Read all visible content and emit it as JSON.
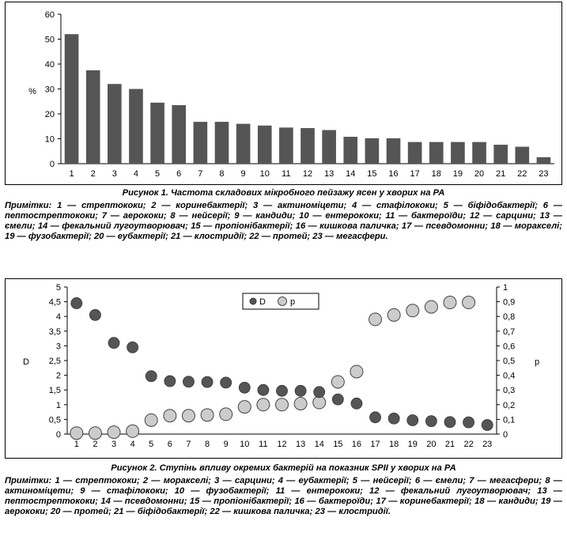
{
  "figure1": {
    "caption": "Рисунок 1. Частота складових мікробного пейзажу ясен у хворих на РА",
    "notes": "Примітки: 1 — стрептококи; 2 — коринебактерії; 3 — актиноміцети; 4 — стафілококи; 5 — біфідобактерії; 6 — пептострептококи; 7 — аерококи; 8 — нейсерії; 9 — кандиди; 10 — ентерококи; 11 — бактероїди; 12 — сарцини; 13 — ємели; 14 — фекальний лугоутворювач; 15 — пропіонібактерії; 16 — кишкова паличка; 17 — псевдомонни; 18 — моракселі; 19 — фузобактерії; 20 — еубактерії; 21 — клостридії; 22 — протей; 23 — мегасфери."
  },
  "figure2": {
    "caption": "Рисунок 2. Ступінь впливу окремих бактерій на показник SPII у хворих на РА",
    "notes": "Примітки: 1 — стрептококи; 2 — моракселі; 3 — сарцини; 4 — еубактерії; 5 — нейсерії; 6 — ємели; 7 — мегасфери; 8 — актиноміцети; 9 — стафілококи; 10 — фузобактерії; 11 — ентерококи; 12 — фекальний лугоутворювач; 13 — пептострептококи; 14 — псевдомонни; 15 — пропіонібактерії; 16 — бактероїди; 17 — коринебактерії; 18 — кандиди; 19 — аерококи; 20 — протей; 21 — біфідобактерії; 22 — кишкова паличка; 23 — клостридії."
  },
  "chart_data": [
    {
      "type": "bar",
      "categories": [
        "1",
        "2",
        "3",
        "4",
        "5",
        "6",
        "7",
        "8",
        "9",
        "10",
        "11",
        "12",
        "13",
        "14",
        "15",
        "16",
        "17",
        "18",
        "19",
        "20",
        "21",
        "22",
        "23"
      ],
      "values": [
        52,
        37.5,
        32,
        30,
        24.5,
        23.5,
        16.8,
        16.8,
        16,
        15.3,
        14.5,
        14.3,
        13.5,
        10.8,
        10.2,
        10.2,
        8.7,
        8.7,
        8.7,
        8.7,
        7.6,
        6.8,
        2.6
      ],
      "ylabel": "%",
      "ylim": [
        0,
        60
      ],
      "yticks": [
        "0",
        "10",
        "20",
        "30",
        "40",
        "50",
        "60"
      ],
      "bar_color": "#555555",
      "grid": false
    },
    {
      "type": "scatter",
      "x": [
        "1",
        "2",
        "3",
        "4",
        "5",
        "6",
        "7",
        "8",
        "9",
        "10",
        "11",
        "12",
        "13",
        "14",
        "15",
        "16",
        "17",
        "18",
        "19",
        "20",
        "21",
        "22",
        "23"
      ],
      "series": [
        {
          "name": "D",
          "axis": "left",
          "color": "#555555",
          "values": [
            4.45,
            4.05,
            3.1,
            2.95,
            1.97,
            1.8,
            1.78,
            1.77,
            1.75,
            1.58,
            1.5,
            1.47,
            1.47,
            1.43,
            1.18,
            1.04,
            0.57,
            0.53,
            0.47,
            0.44,
            0.41,
            0.4,
            0.31
          ]
        },
        {
          "name": "p",
          "axis": "right",
          "color": "#cccccc",
          "values": [
            0.007,
            0.007,
            0.013,
            0.02,
            0.095,
            0.125,
            0.125,
            0.13,
            0.135,
            0.185,
            0.2,
            0.2,
            0.207,
            0.215,
            0.355,
            0.425,
            0.78,
            0.81,
            0.84,
            0.865,
            0.895,
            0.895,
            null
          ]
        }
      ],
      "ylabel_left": "D",
      "ylabel_right": "p",
      "ylim_left": [
        0,
        5
      ],
      "ylim_right": [
        0,
        1
      ],
      "yticks_left": [
        "0",
        "0,5",
        "1",
        "1,5",
        "2",
        "2,5",
        "3",
        "3,5",
        "4",
        "4,5",
        "5"
      ],
      "yticks_right": [
        "0",
        "0,1",
        "0,2",
        "0,3",
        "0,4",
        "0,5",
        "0,6",
        "0,7",
        "0,8",
        "0,9",
        "1"
      ],
      "legend": [
        "D",
        "p"
      ],
      "legend_position": "top-center"
    }
  ]
}
